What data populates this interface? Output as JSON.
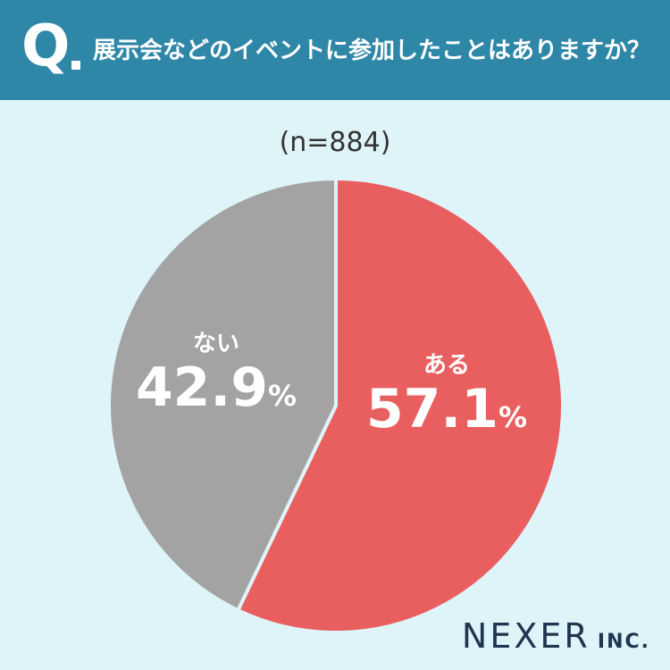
{
  "header": {
    "q_label": "Q",
    "question": "展示会などのイベントに参加したことはありますか？"
  },
  "sample_size": "(n=884)",
  "chart_data": {
    "type": "pie",
    "title": "展示会などのイベントに参加したことはありますか？",
    "slices": [
      {
        "label": "ある",
        "value": 57.1,
        "display": "57.1",
        "unit": "%",
        "color": "#e95f5f"
      },
      {
        "label": "ない",
        "value": 42.9,
        "display": "42.9",
        "unit": "%",
        "color": "#a3a3a3"
      }
    ],
    "start": "12 o'clock",
    "direction": "clockwise"
  },
  "logo": {
    "main": "NEXER",
    "sub": "INC."
  }
}
